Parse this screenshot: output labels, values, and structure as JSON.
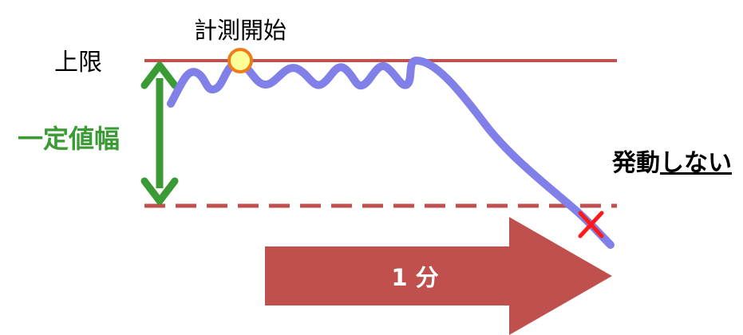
{
  "labels": {
    "measure_start": "計測開始",
    "upper_limit": "上限",
    "range": "一定値幅",
    "result_prefix": "発動",
    "result_negation": "しない",
    "duration": "1 分"
  },
  "colors": {
    "limit_line": "#c0504d",
    "dashed_line": "#c0504d",
    "curve": "#8080e8",
    "range_arrow": "#3a9a34",
    "start_marker_fill": "#ffff99",
    "start_marker_stroke": "#f07c18",
    "cross_mark": "#ff1a1a",
    "time_arrow": "#c0504d",
    "time_text": "#ffffff"
  },
  "icons": {
    "start_marker": "circle-marker-icon",
    "result_mark": "cross-icon"
  }
}
